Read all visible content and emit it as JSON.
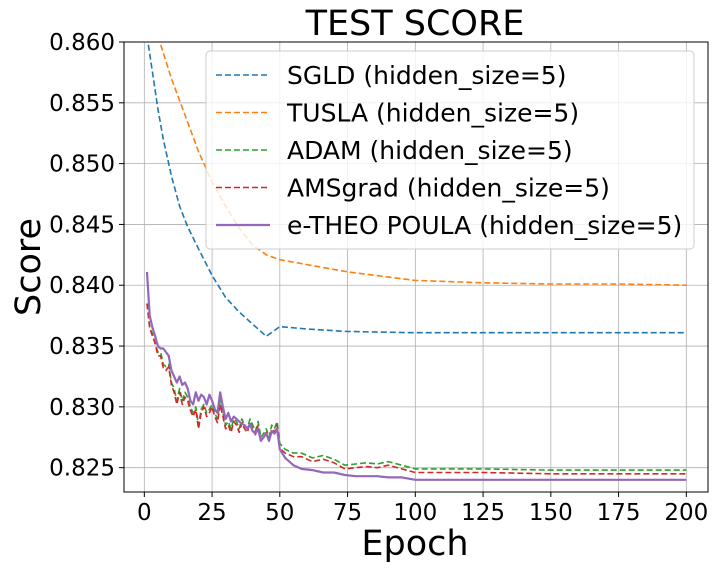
{
  "chart_data": {
    "type": "line",
    "title": "TEST SCORE",
    "xlabel": "Epoch",
    "ylabel": "Score",
    "xlim": [
      -7.5,
      208
    ],
    "ylim": [
      0.823,
      0.86
    ],
    "xticks": [
      0,
      25,
      50,
      75,
      100,
      125,
      150,
      175,
      200
    ],
    "yticks": [
      0.825,
      0.83,
      0.835,
      0.84,
      0.845,
      0.85,
      0.855,
      0.86
    ],
    "ytick_labels": [
      "0.825",
      "0.830",
      "0.835",
      "0.840",
      "0.845",
      "0.850",
      "0.855",
      "0.860"
    ],
    "grid": true,
    "legend_position": "top-right",
    "series": [
      {
        "name": "SGLD (hidden_size=5)",
        "color": "#1f77b4",
        "dash": "dashed",
        "points": [
          [
            1,
            0.8605
          ],
          [
            3,
            0.8575
          ],
          [
            5,
            0.8545
          ],
          [
            7,
            0.852
          ],
          [
            10,
            0.849
          ],
          [
            13,
            0.8465
          ],
          [
            16,
            0.8448
          ],
          [
            20,
            0.843
          ],
          [
            25,
            0.8408
          ],
          [
            30,
            0.839
          ],
          [
            35,
            0.8378
          ],
          [
            40,
            0.8368
          ],
          [
            45,
            0.8358
          ],
          [
            50,
            0.8366
          ],
          [
            60,
            0.8364
          ],
          [
            75,
            0.8362
          ],
          [
            100,
            0.8361
          ],
          [
            125,
            0.8361
          ],
          [
            150,
            0.8361
          ],
          [
            175,
            0.8361
          ],
          [
            200,
            0.8361
          ]
        ]
      },
      {
        "name": "TUSLA (hidden_size=5)",
        "color": "#ff7f0e",
        "dash": "dashed",
        "points": [
          [
            1,
            0.8625
          ],
          [
            5,
            0.8605
          ],
          [
            10,
            0.857
          ],
          [
            15,
            0.854
          ],
          [
            20,
            0.851
          ],
          [
            25,
            0.8485
          ],
          [
            30,
            0.8465
          ],
          [
            35,
            0.8447
          ],
          [
            40,
            0.8433
          ],
          [
            45,
            0.8425
          ],
          [
            50,
            0.8421
          ],
          [
            60,
            0.8417
          ],
          [
            75,
            0.8411
          ],
          [
            100,
            0.8404
          ],
          [
            125,
            0.8402
          ],
          [
            150,
            0.8401
          ],
          [
            175,
            0.8401
          ],
          [
            200,
            0.84
          ]
        ]
      },
      {
        "name": "ADAM (hidden_size=5)",
        "color": "#2ca02c",
        "dash": "dashed",
        "points": [
          [
            1,
            0.8385
          ],
          [
            2,
            0.8365
          ],
          [
            3,
            0.836
          ],
          [
            4,
            0.8352
          ],
          [
            5,
            0.8345
          ],
          [
            6,
            0.8345
          ],
          [
            7,
            0.8335
          ],
          [
            8,
            0.8333
          ],
          [
            9,
            0.8335
          ],
          [
            10,
            0.832
          ],
          [
            11,
            0.8315
          ],
          [
            12,
            0.8305
          ],
          [
            13,
            0.8315
          ],
          [
            14,
            0.8305
          ],
          [
            15,
            0.8312
          ],
          [
            16,
            0.8308
          ],
          [
            17,
            0.83
          ],
          [
            18,
            0.8295
          ],
          [
            19,
            0.83
          ],
          [
            20,
            0.8285
          ],
          [
            21,
            0.8298
          ],
          [
            22,
            0.8302
          ],
          [
            23,
            0.8295
          ],
          [
            24,
            0.8298
          ],
          [
            25,
            0.8302
          ],
          [
            26,
            0.8295
          ],
          [
            27,
            0.829
          ],
          [
            28,
            0.8305
          ],
          [
            29,
            0.8295
          ],
          [
            30,
            0.8285
          ],
          [
            31,
            0.8288
          ],
          [
            32,
            0.8282
          ],
          [
            33,
            0.829
          ],
          [
            34,
            0.8288
          ],
          [
            35,
            0.8282
          ],
          [
            36,
            0.829
          ],
          [
            37,
            0.8285
          ],
          [
            38,
            0.8282
          ],
          [
            39,
            0.829
          ],
          [
            40,
            0.8285
          ],
          [
            41,
            0.828
          ],
          [
            42,
            0.8288
          ],
          [
            43,
            0.8275
          ],
          [
            44,
            0.8278
          ],
          [
            45,
            0.8282
          ],
          [
            46,
            0.8275
          ],
          [
            47,
            0.8285
          ],
          [
            48,
            0.8282
          ],
          [
            49,
            0.8288
          ],
          [
            50,
            0.827
          ],
          [
            52,
            0.8265
          ],
          [
            55,
            0.8262
          ],
          [
            58,
            0.8262
          ],
          [
            62,
            0.8258
          ],
          [
            66,
            0.826
          ],
          [
            70,
            0.8257
          ],
          [
            74,
            0.8252
          ],
          [
            78,
            0.8253
          ],
          [
            82,
            0.8254
          ],
          [
            86,
            0.8253
          ],
          [
            90,
            0.8255
          ],
          [
            95,
            0.8252
          ],
          [
            100,
            0.8249
          ],
          [
            110,
            0.8249
          ],
          [
            125,
            0.8249
          ],
          [
            150,
            0.8248
          ],
          [
            175,
            0.8248
          ],
          [
            200,
            0.8248
          ]
        ]
      },
      {
        "name": "AMSgrad (hidden_size=5)",
        "color": "#d62728",
        "dash": "dashed",
        "points": [
          [
            1,
            0.8385
          ],
          [
            2,
            0.8365
          ],
          [
            3,
            0.8358
          ],
          [
            4,
            0.8352
          ],
          [
            5,
            0.8342
          ],
          [
            6,
            0.8342
          ],
          [
            7,
            0.8332
          ],
          [
            8,
            0.833
          ],
          [
            9,
            0.8333
          ],
          [
            10,
            0.8318
          ],
          [
            11,
            0.8312
          ],
          [
            12,
            0.8302
          ],
          [
            13,
            0.8312
          ],
          [
            14,
            0.8302
          ],
          [
            15,
            0.8308
          ],
          [
            16,
            0.8305
          ],
          [
            17,
            0.8297
          ],
          [
            18,
            0.8292
          ],
          [
            19,
            0.8298
          ],
          [
            20,
            0.8282
          ],
          [
            21,
            0.8295
          ],
          [
            22,
            0.83
          ],
          [
            23,
            0.8292
          ],
          [
            24,
            0.8295
          ],
          [
            25,
            0.83
          ],
          [
            26,
            0.8292
          ],
          [
            27,
            0.8287
          ],
          [
            28,
            0.8302
          ],
          [
            29,
            0.8292
          ],
          [
            30,
            0.8282
          ],
          [
            31,
            0.8285
          ],
          [
            32,
            0.8279
          ],
          [
            33,
            0.8288
          ],
          [
            34,
            0.8285
          ],
          [
            35,
            0.8279
          ],
          [
            36,
            0.8287
          ],
          [
            37,
            0.8282
          ],
          [
            38,
            0.8279
          ],
          [
            39,
            0.8287
          ],
          [
            40,
            0.8282
          ],
          [
            41,
            0.8277
          ],
          [
            42,
            0.8285
          ],
          [
            43,
            0.8272
          ],
          [
            44,
            0.8275
          ],
          [
            45,
            0.8279
          ],
          [
            46,
            0.8272
          ],
          [
            47,
            0.8282
          ],
          [
            48,
            0.8279
          ],
          [
            49,
            0.8285
          ],
          [
            50,
            0.8266
          ],
          [
            52,
            0.8262
          ],
          [
            55,
            0.8259
          ],
          [
            58,
            0.8259
          ],
          [
            62,
            0.8255
          ],
          [
            66,
            0.8257
          ],
          [
            70,
            0.8254
          ],
          [
            74,
            0.8249
          ],
          [
            78,
            0.825
          ],
          [
            82,
            0.8251
          ],
          [
            86,
            0.825
          ],
          [
            90,
            0.8252
          ],
          [
            95,
            0.8249
          ],
          [
            100,
            0.8246
          ],
          [
            110,
            0.8246
          ],
          [
            125,
            0.8246
          ],
          [
            150,
            0.8245
          ],
          [
            175,
            0.8245
          ],
          [
            200,
            0.8245
          ]
        ]
      },
      {
        "name": "e-THEO POULA (hidden_size=5)",
        "color": "#9467bd",
        "dash": "solid",
        "points": [
          [
            1,
            0.8411
          ],
          [
            2,
            0.8375
          ],
          [
            3,
            0.8365
          ],
          [
            4,
            0.8358
          ],
          [
            5,
            0.835
          ],
          [
            6,
            0.8348
          ],
          [
            7,
            0.8348
          ],
          [
            8,
            0.8345
          ],
          [
            9,
            0.8342
          ],
          [
            10,
            0.833
          ],
          [
            11,
            0.8325
          ],
          [
            12,
            0.832
          ],
          [
            13,
            0.8325
          ],
          [
            14,
            0.8318
          ],
          [
            15,
            0.832
          ],
          [
            16,
            0.8315
          ],
          [
            17,
            0.8305
          ],
          [
            18,
            0.8302
          ],
          [
            19,
            0.8312
          ],
          [
            20,
            0.8305
          ],
          [
            21,
            0.831
          ],
          [
            22,
            0.8308
          ],
          [
            23,
            0.8302
          ],
          [
            24,
            0.831
          ],
          [
            25,
            0.8305
          ],
          [
            26,
            0.8298
          ],
          [
            27,
            0.8295
          ],
          [
            28,
            0.8312
          ],
          [
            29,
            0.83
          ],
          [
            30,
            0.829
          ],
          [
            31,
            0.8295
          ],
          [
            32,
            0.8288
          ],
          [
            33,
            0.8292
          ],
          [
            34,
            0.829
          ],
          [
            35,
            0.8288
          ],
          [
            36,
            0.8286
          ],
          [
            37,
            0.8285
          ],
          [
            38,
            0.8282
          ],
          [
            39,
            0.8286
          ],
          [
            40,
            0.828
          ],
          [
            41,
            0.8278
          ],
          [
            42,
            0.8282
          ],
          [
            43,
            0.8272
          ],
          [
            44,
            0.8275
          ],
          [
            45,
            0.8278
          ],
          [
            46,
            0.8272
          ],
          [
            47,
            0.828
          ],
          [
            48,
            0.8278
          ],
          [
            49,
            0.8282
          ],
          [
            50,
            0.8265
          ],
          [
            52,
            0.8258
          ],
          [
            55,
            0.8252
          ],
          [
            58,
            0.8249
          ],
          [
            62,
            0.8248
          ],
          [
            66,
            0.8246
          ],
          [
            70,
            0.8246
          ],
          [
            74,
            0.8244
          ],
          [
            78,
            0.8243
          ],
          [
            82,
            0.8243
          ],
          [
            86,
            0.8243
          ],
          [
            90,
            0.8242
          ],
          [
            95,
            0.8242
          ],
          [
            100,
            0.824
          ],
          [
            110,
            0.824
          ],
          [
            125,
            0.824
          ],
          [
            150,
            0.824
          ],
          [
            175,
            0.824
          ],
          [
            200,
            0.824
          ]
        ]
      }
    ]
  }
}
